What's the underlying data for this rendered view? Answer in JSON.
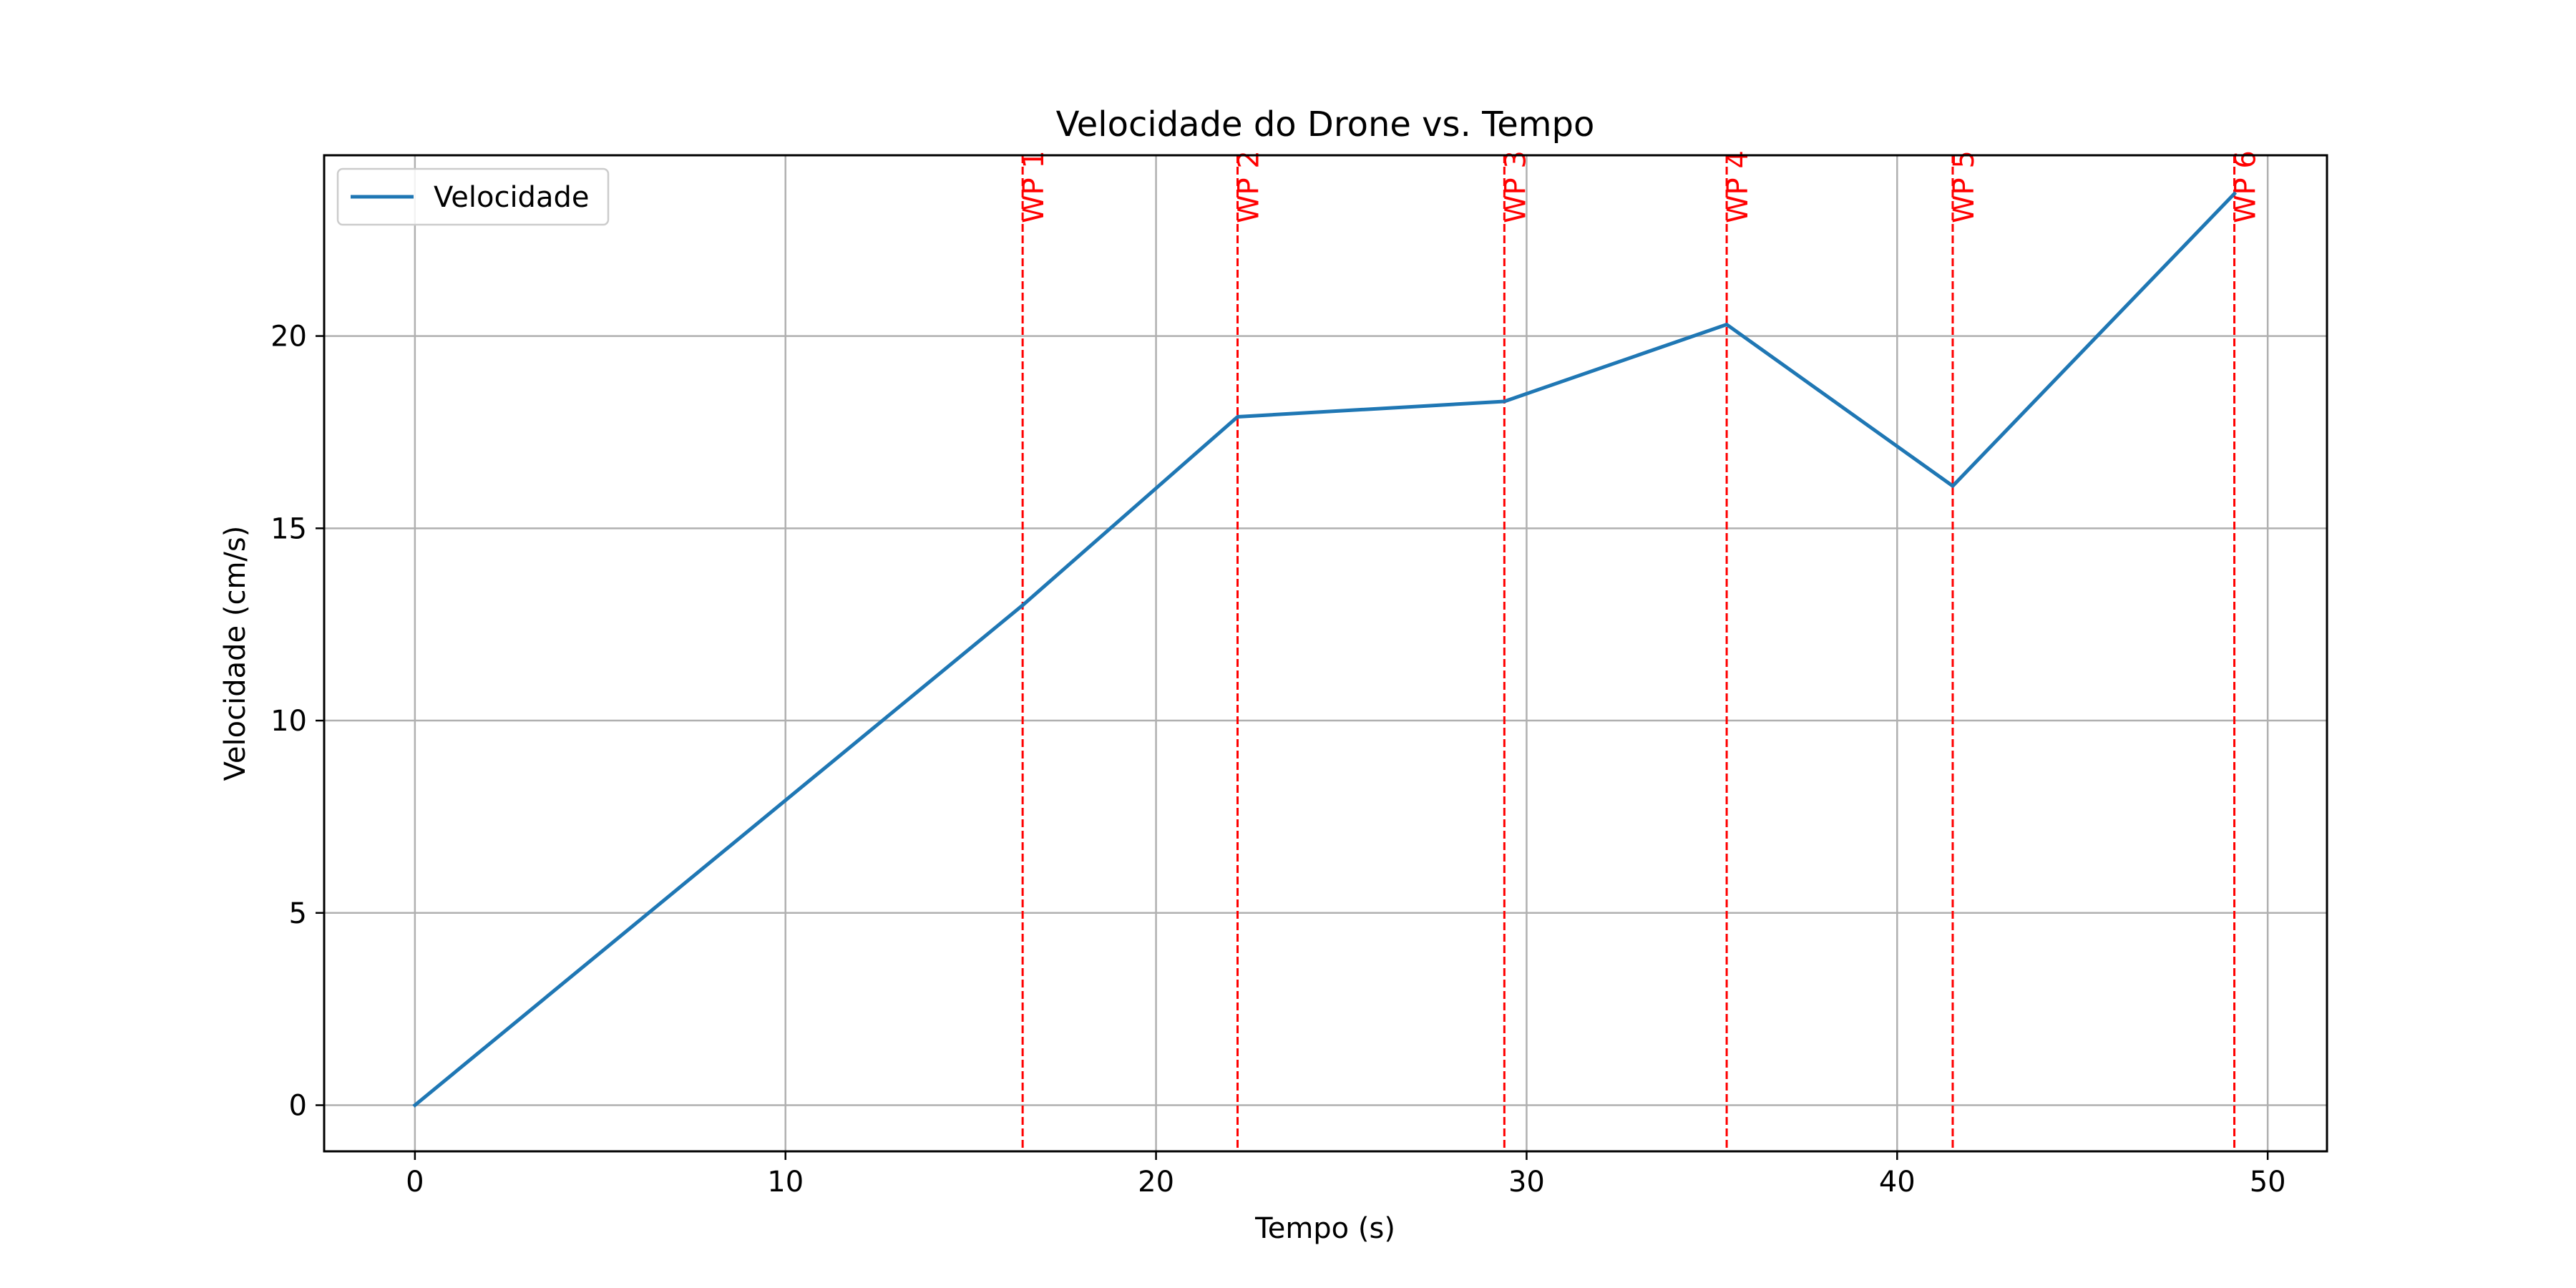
{
  "chart_data": {
    "type": "line",
    "title": "Velocidade do Drone vs. Tempo",
    "xlabel": "Tempo (s)",
    "ylabel": "Velocidade (cm/s)",
    "xlim": [
      -2.45,
      51.6
    ],
    "ylim": [
      -1.2,
      24.7
    ],
    "xticks": [
      0,
      10,
      20,
      30,
      40,
      50
    ],
    "yticks": [
      0,
      5,
      10,
      15,
      20
    ],
    "grid": true,
    "legend_position": "upper-left",
    "series": [
      {
        "name": "Velocidade",
        "color": "#1f77b4",
        "x": [
          0,
          16.4,
          22.2,
          29.4,
          35.4,
          41.5,
          49.1
        ],
        "y": [
          0,
          13.0,
          17.9,
          18.3,
          20.3,
          16.1,
          23.7
        ]
      }
    ],
    "waypoints": {
      "color": "#ff0000",
      "style": "dashed",
      "items": [
        {
          "label": "WP 1",
          "x": 16.4
        },
        {
          "label": "WP 2",
          "x": 22.2
        },
        {
          "label": "WP 3",
          "x": 29.4
        },
        {
          "label": "WP 4",
          "x": 35.4
        },
        {
          "label": "WP 5",
          "x": 41.5
        },
        {
          "label": "WP 6",
          "x": 49.1
        }
      ]
    }
  }
}
